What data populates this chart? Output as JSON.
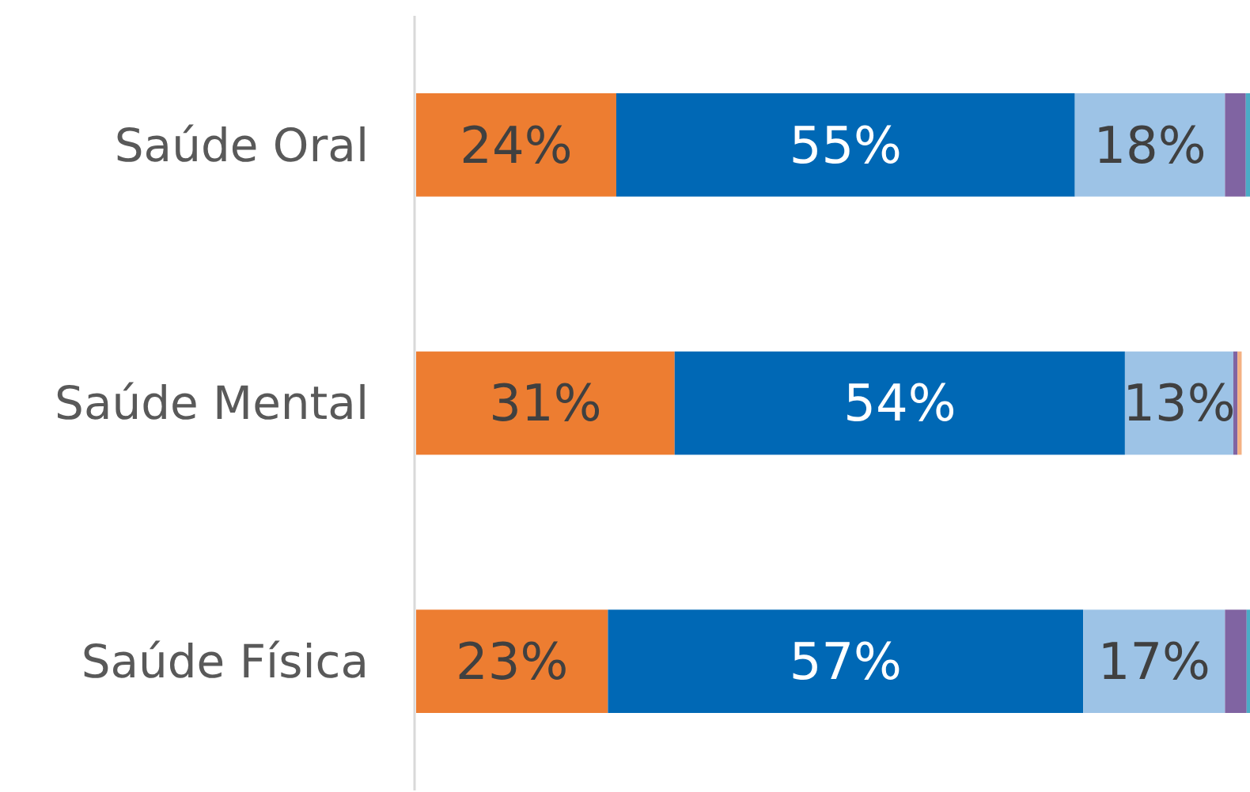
{
  "chart_data": {
    "type": "bar",
    "orientation": "horizontal",
    "stacked": true,
    "categories": [
      "Saúde Oral",
      "Saúde Mental",
      "Saúde Física"
    ],
    "series": [
      {
        "color": "#ed7d31",
        "values": [
          24,
          31,
          23
        ],
        "value_labels": [
          "24%",
          "31%",
          "23%"
        ]
      },
      {
        "color": "#0068b5",
        "values": [
          55,
          54,
          57
        ],
        "value_labels": [
          "55%",
          "54%",
          "57%"
        ]
      },
      {
        "color": "#9dc3e6",
        "values": [
          18,
          13,
          17
        ],
        "value_labels": [
          "18%",
          "13%",
          "17%"
        ]
      },
      {
        "color": "#8064a2",
        "values": [
          2.5,
          0.5,
          2.6
        ],
        "value_labels": [
          null,
          null,
          null
        ]
      },
      {
        "color": "#4bacc6",
        "values": [
          0.5,
          0,
          0.4
        ],
        "value_labels": [
          null,
          null,
          null
        ]
      },
      {
        "color": "#f4b183",
        "values": [
          0,
          0.5,
          0
        ],
        "value_labels": [
          null,
          null,
          null
        ]
      }
    ]
  }
}
